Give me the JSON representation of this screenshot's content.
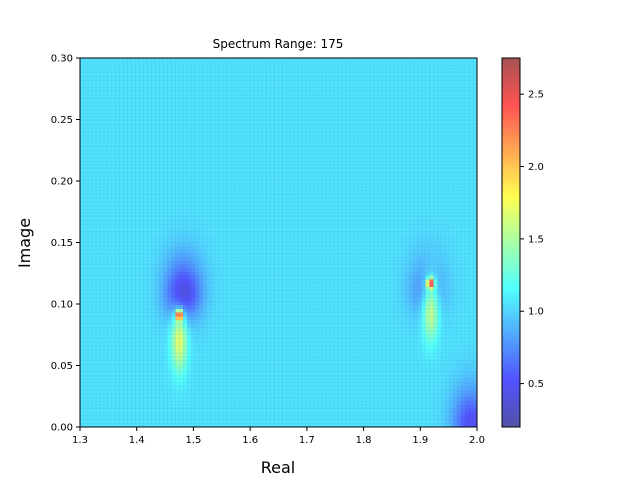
{
  "chart_data": {
    "type": "heatmap",
    "title": "Spectrum Range: 175",
    "xlabel": "Real",
    "ylabel": "Image",
    "xlim": [
      1.3,
      2.0
    ],
    "ylim": [
      0.0,
      0.3
    ],
    "x_ticks": [
      "1.3",
      "1.4",
      "1.5",
      "1.6",
      "1.7",
      "1.8",
      "1.9",
      "2.0"
    ],
    "y_ticks": [
      "0.00",
      "0.05",
      "0.10",
      "0.15",
      "0.20",
      "0.25",
      "0.30"
    ],
    "colormap": "jet",
    "grid_resolution": [
      100,
      100
    ],
    "colorbar": {
      "range": [
        0.2,
        2.75
      ],
      "ticks": [
        "0.5",
        "1.0",
        "1.5",
        "2.0",
        "2.5"
      ]
    },
    "background_value": 1.05,
    "features": [
      {
        "kind": "pole",
        "x": 1.475,
        "y": 0.091,
        "value": 2.75
      },
      {
        "kind": "trough",
        "x": 1.482,
        "y": 0.106,
        "value": 0.35
      },
      {
        "kind": "pole",
        "x": 1.918,
        "y": 0.117,
        "value": 2.6
      },
      {
        "kind": "trough",
        "x": 1.912,
        "y": 0.108,
        "value": 0.7
      },
      {
        "kind": "trough",
        "x": 1.99,
        "y": 0.001,
        "value": 0.45
      }
    ]
  }
}
